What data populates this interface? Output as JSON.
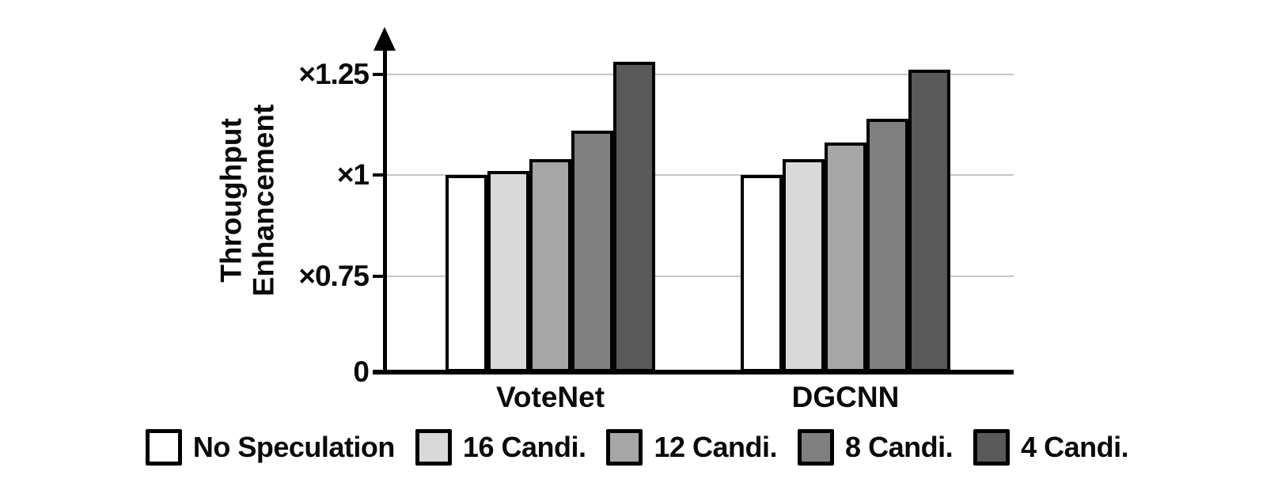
{
  "figure": {
    "y_axis_title_line1": "Throughput",
    "y_axis_title_line2": "Enhancement"
  },
  "colors": {
    "background": "#ffffff",
    "axis": "#000000",
    "gridline": "#c6c6c6",
    "text": "#0a0a0a"
  },
  "chart_data": {
    "type": "bar",
    "title": "",
    "xlabel": "",
    "ylabel": "Throughput Enhancement",
    "categories": [
      "VoteNet",
      "DGCNN"
    ],
    "series": [
      {
        "name": "No Speculation",
        "color": "#ffffff",
        "values": [
          1.0,
          1.0
        ]
      },
      {
        "name": "16 Candi.",
        "color": "#d9d9d9",
        "values": [
          1.01,
          1.04
        ]
      },
      {
        "name": "12 Candi.",
        "color": "#a6a6a6",
        "values": [
          1.04,
          1.08
        ]
      },
      {
        "name": "8 Candi.",
        "color": "#808080",
        "values": [
          1.11,
          1.14
        ]
      },
      {
        "name": "4 Candi.",
        "color": "#595959",
        "values": [
          1.28,
          1.26
        ]
      }
    ],
    "y_ticks": [
      {
        "label": "×1.25",
        "value": 1.25
      },
      {
        "label": "×1",
        "value": 1.0
      },
      {
        "label": "×0.75",
        "value": 0.75
      },
      {
        "label": "0",
        "value": 0
      }
    ],
    "axis": {
      "grid": true,
      "arrow_top": true,
      "broken_below": 0.75,
      "unit_prefix": "×"
    },
    "legend_position": "bottom"
  }
}
